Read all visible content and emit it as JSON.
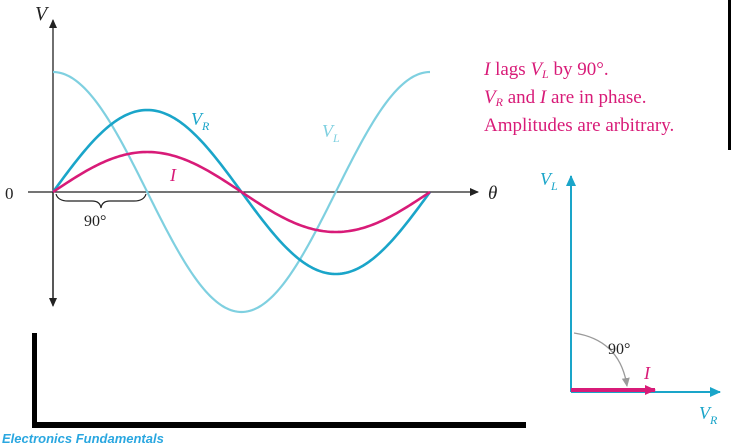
{
  "waveform": {
    "y_axis_label": "V",
    "x_axis_label": "θ",
    "origin_label": "0",
    "angle_label": "90°",
    "curve_labels": {
      "vr_main": "V",
      "vr_sub": "R",
      "vl_main": "V",
      "vl_sub": "L",
      "i": "I"
    },
    "colors": {
      "vr": "#1aa5c9",
      "vl": "#7fd0e0",
      "i": "#d81b78",
      "axes": "#222222"
    }
  },
  "notes": {
    "line1_a": "I",
    "line1_b": " lags ",
    "line1_c": "V",
    "line1_sub": "L",
    "line1_d": " by 90°.",
    "line2_a": "V",
    "line2_sub": "R",
    "line2_b": " and ",
    "line2_c": "I",
    "line2_d": " are in phase.",
    "line3": "Amplitudes are arbitrary."
  },
  "phasor": {
    "vl_main": "V",
    "vl_sub": "L",
    "vr_main": "V",
    "vr_sub": "R",
    "i_label": "I",
    "angle_label": "90°"
  },
  "footer": "Electronics Fundamentals"
}
